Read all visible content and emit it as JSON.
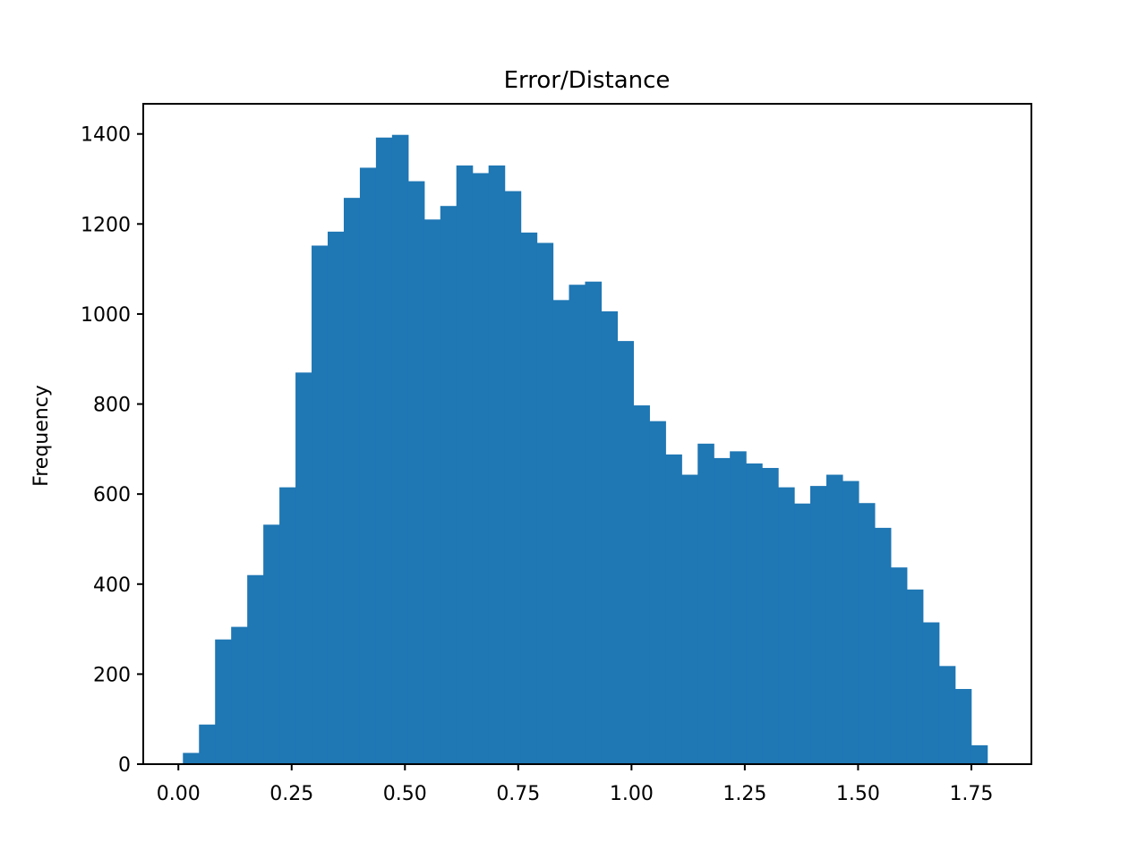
{
  "chart_data": {
    "type": "bar",
    "title": "Error/Distance",
    "xlabel": "",
    "ylabel": "Frequency",
    "bin_start": 0.01,
    "bin_width": 0.0355,
    "values": [
      25,
      88,
      277,
      305,
      420,
      532,
      615,
      870,
      1152,
      1183,
      1258,
      1325,
      1392,
      1398,
      1295,
      1210,
      1240,
      1330,
      1313,
      1330,
      1273,
      1181,
      1158,
      1031,
      1065,
      1072,
      1006,
      940,
      797,
      762,
      688,
      643,
      712,
      680,
      695,
      668,
      658,
      615,
      579,
      618,
      643,
      629,
      580,
      525,
      437,
      388,
      315,
      218,
      167,
      42
    ],
    "xlim": [
      -0.0775,
      1.8825
    ],
    "ylim": [
      0,
      1467
    ],
    "xticks": [
      {
        "value": 0.0,
        "label": "0.00"
      },
      {
        "value": 0.25,
        "label": "0.25"
      },
      {
        "value": 0.5,
        "label": "0.50"
      },
      {
        "value": 0.75,
        "label": "0.75"
      },
      {
        "value": 1.0,
        "label": "1.00"
      },
      {
        "value": 1.25,
        "label": "1.25"
      },
      {
        "value": 1.5,
        "label": "1.50"
      },
      {
        "value": 1.75,
        "label": "1.75"
      }
    ],
    "yticks": [
      {
        "value": 0,
        "label": "0"
      },
      {
        "value": 200,
        "label": "200"
      },
      {
        "value": 400,
        "label": "400"
      },
      {
        "value": 600,
        "label": "600"
      },
      {
        "value": 800,
        "label": "800"
      },
      {
        "value": 1000,
        "label": "1000"
      },
      {
        "value": 1200,
        "label": "1200"
      },
      {
        "value": 1400,
        "label": "1400"
      }
    ],
    "bar_color": "#1f77b4",
    "grid": false,
    "legend": "none"
  }
}
